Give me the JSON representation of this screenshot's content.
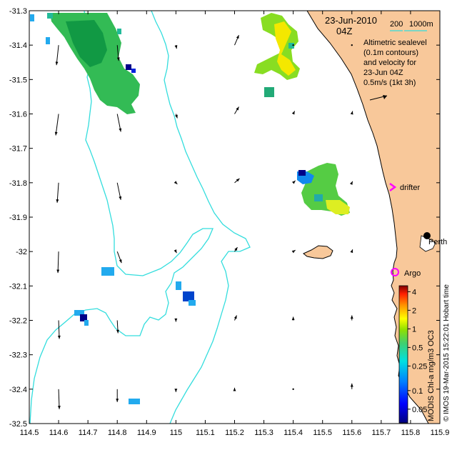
{
  "map": {
    "date": "23-Jun-2010",
    "time": "04Z",
    "scale_labels": [
      "200",
      "1000m"
    ],
    "legend_lines": [
      "Altimetric sealevel",
      "(0.1m contours)",
      "and velocity for",
      "23-Jun 04Z"
    ],
    "arrow_scale_label": "0.5m/s (1kt 3h)",
    "credit": "© IMOS 19-Mar-2015 15:22:01 Hobart time",
    "colorbar_title": "MODIS Chl-a mg/m3 OC3",
    "colorbar_ticks": [
      "4",
      "2",
      "1",
      "0.5",
      "0.25",
      "0.1",
      "0.05"
    ],
    "places": {
      "drifter": "drifter",
      "perth": "Perth",
      "argo": "Argo"
    },
    "x_ticks": [
      "114.5",
      "114.6",
      "114.7",
      "114.8",
      "114.9",
      "115",
      "115.1",
      "115.2",
      "115.3",
      "115.4",
      "115.5",
      "115.6",
      "115.7",
      "115.8",
      "115.9"
    ],
    "y_ticks": [
      "-31.3",
      "-31.4",
      "-31.5",
      "-31.6",
      "-31.7",
      "-31.8",
      "-31.9",
      "-32",
      "-32.1",
      "-32.2",
      "-32.3",
      "-32.4",
      "-32.5"
    ],
    "colors": {
      "land": "#F8C89A",
      "isobath": "#33DDDD",
      "drifter": "#FF00FF",
      "argo": "#FF00FF"
    },
    "velocity_rows": [
      {
        "lat": -31.4,
        "arrows": [
          [
            -0.03,
            -0.28
          ],
          [
            0.02,
            -0.22
          ],
          [
            0.01,
            -0.05
          ],
          [
            0.06,
            0.14
          ],
          [
            0.0,
            0.0
          ],
          [
            0.0,
            0.0
          ],
          [
            0.0,
            0.0
          ],
          [
            0.0,
            0.0
          ],
          [
            0.0,
            0.0
          ],
          [
            0.0,
            0.0
          ]
        ]
      },
      {
        "lat": -31.6,
        "arrows": [
          [
            -0.04,
            -0.3
          ],
          [
            0.05,
            -0.25
          ],
          [
            0.02,
            -0.06
          ],
          [
            0.06,
            0.1
          ],
          [
            0.02,
            0.04
          ],
          [
            0.01,
            0.04
          ],
          [
            0.0,
            0.06
          ],
          [
            0.0,
            0.0
          ],
          [
            0.0,
            0.0
          ],
          [
            0.0,
            0.0
          ]
        ]
      },
      {
        "lat": -31.8,
        "arrows": [
          [
            -0.02,
            -0.28
          ],
          [
            0.05,
            -0.24
          ],
          [
            0.02,
            -0.02
          ],
          [
            0.07,
            0.06
          ],
          [
            0.03,
            0.03
          ],
          [
            0.01,
            0.02
          ],
          [
            0.0,
            0.07
          ],
          [
            0.0,
            0.1
          ],
          [
            0.0,
            0.09
          ],
          [
            0.0,
            0.0
          ]
        ]
      },
      {
        "lat": -32.0,
        "arrows": [
          [
            -0.01,
            -0.3
          ],
          [
            0.06,
            -0.16
          ],
          [
            0.01,
            -0.02
          ],
          [
            0.04,
            0.06
          ],
          [
            0.03,
            0.02
          ],
          [
            0.01,
            0.03
          ],
          [
            0.0,
            0.09
          ],
          [
            0.0,
            0.11
          ],
          [
            0.0,
            0.1
          ],
          [
            0.0,
            0.0
          ]
        ]
      },
      {
        "lat": -32.2,
        "arrows": [
          [
            0.01,
            -0.26
          ],
          [
            0.01,
            -0.18
          ],
          [
            0.0,
            -0.02
          ],
          [
            0.03,
            0.07
          ],
          [
            0.0,
            0.05
          ],
          [
            0.0,
            0.07
          ],
          [
            0.0,
            0.1
          ],
          [
            0.0,
            0.12
          ],
          [
            0.0,
            0.1
          ],
          [
            0.0,
            0.0
          ]
        ]
      },
      {
        "lat": -32.4,
        "arrows": [
          [
            0.01,
            -0.28
          ],
          [
            0.0,
            -0.18
          ],
          [
            0.0,
            -0.04
          ],
          [
            0.0,
            0.02
          ],
          [
            0.0,
            0.0
          ],
          [
            0.0,
            0.08
          ],
          [
            0.0,
            0.1
          ],
          [
            0.0,
            0.09
          ],
          [
            0.0,
            0.09
          ],
          [
            0.0,
            0.0
          ]
        ]
      }
    ]
  }
}
